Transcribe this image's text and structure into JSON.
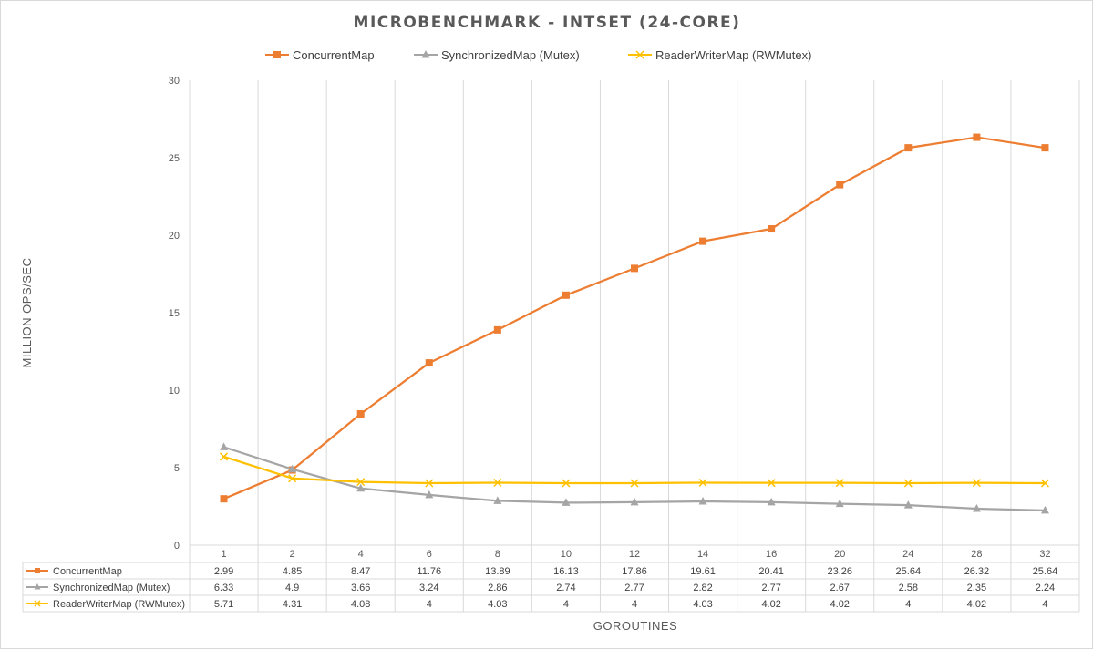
{
  "chart_data": {
    "type": "line",
    "title": "MICROBENCHMARK - INTSET (24-CORE)",
    "xlabel": "GOROUTINES",
    "ylabel": "MILLION OPS/SEC",
    "ylim": [
      0,
      30
    ],
    "yticks": [
      0,
      5,
      10,
      15,
      20,
      25,
      30
    ],
    "grid": true,
    "legend": "top",
    "categories": [
      "1",
      "2",
      "4",
      "6",
      "8",
      "10",
      "12",
      "14",
      "16",
      "20",
      "24",
      "28",
      "32"
    ],
    "series": [
      {
        "name": "ConcurrentMap",
        "color": "#ed7d31",
        "marker": "square",
        "values": [
          2.99,
          4.85,
          8.47,
          11.76,
          13.89,
          16.13,
          17.86,
          19.61,
          20.41,
          23.26,
          25.64,
          26.32,
          25.64
        ]
      },
      {
        "name": "SynchronizedMap (Mutex)",
        "color": "#a5a5a5",
        "marker": "triangle",
        "values": [
          6.33,
          4.9,
          3.66,
          3.24,
          2.86,
          2.74,
          2.77,
          2.82,
          2.77,
          2.67,
          2.58,
          2.35,
          2.24
        ]
      },
      {
        "name": "ReaderWriterMap (RWMutex)",
        "color": "#ffc000",
        "marker": "x",
        "values": [
          5.71,
          4.31,
          4.08,
          4,
          4.03,
          4,
          4,
          4.03,
          4.02,
          4.02,
          4,
          4.02,
          4
        ]
      }
    ]
  }
}
